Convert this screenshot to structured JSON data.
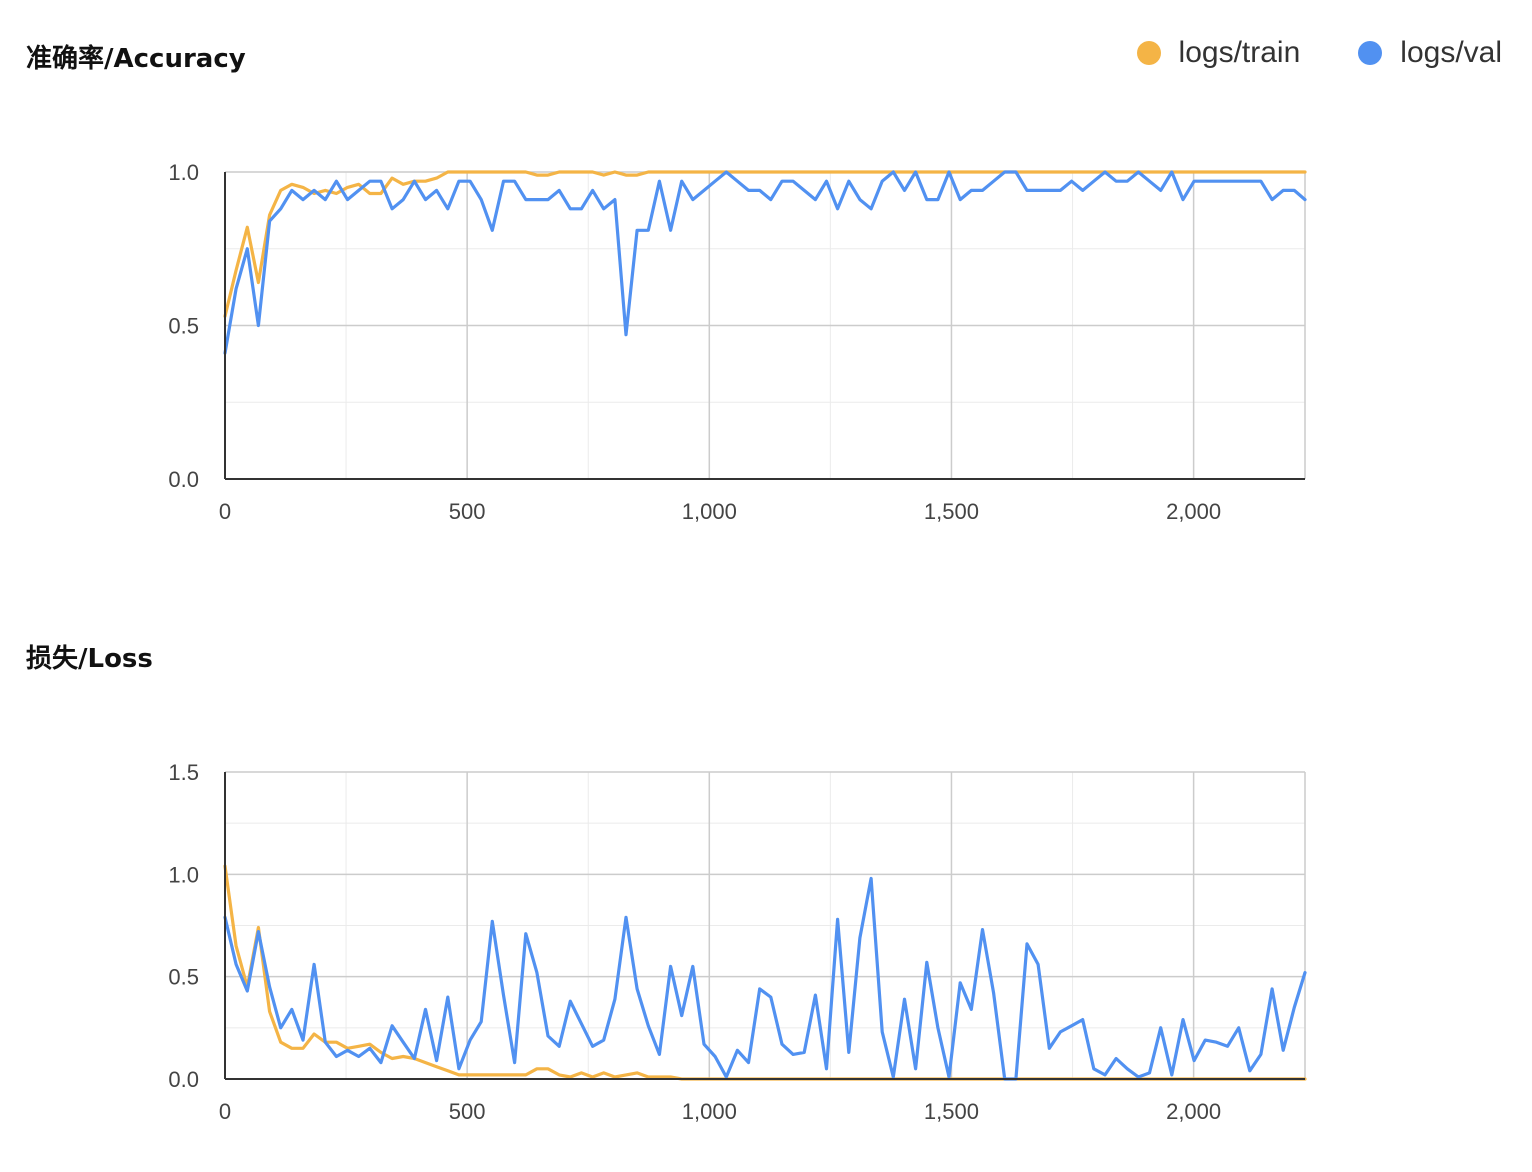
{
  "legend": [
    {
      "name": "logs/train",
      "color": "#f4b446"
    },
    {
      "name": "logs/val",
      "color": "#5191f1"
    }
  ],
  "chart_data": [
    {
      "type": "line",
      "title": "准确率/Accuracy",
      "xlim": [
        0,
        2230
      ],
      "ylim": [
        0,
        1.0
      ],
      "xticks": [
        0,
        500,
        1000,
        1500,
        2000
      ],
      "xtick_labels": [
        "0",
        "500",
        "1,000",
        "1,500",
        "2,000"
      ],
      "yticks": [
        0.0,
        0.5,
        1.0
      ],
      "ytick_labels": [
        "0.0",
        "0.5",
        "1.0"
      ],
      "grid": true,
      "legend_position": "top-right",
      "series": [
        {
          "name": "logs/train",
          "color": "#f4b446",
          "x": [
            0,
            23,
            46,
            69,
            92,
            115,
            138,
            161,
            184,
            207,
            230,
            253,
            276,
            299,
            322,
            345,
            368,
            391,
            414,
            437,
            460,
            483,
            506,
            529,
            552,
            575,
            598,
            621,
            644,
            667,
            690,
            713,
            736,
            759,
            782,
            805,
            828,
            851,
            874,
            897,
            920,
            943,
            966,
            989,
            1012,
            1035,
            1100,
            1200,
            1300,
            1400,
            1500,
            1600,
            1700,
            1800,
            1900,
            2000,
            2100,
            2230
          ],
          "y": [
            0.53,
            0.68,
            0.82,
            0.64,
            0.86,
            0.94,
            0.96,
            0.95,
            0.93,
            0.94,
            0.93,
            0.95,
            0.96,
            0.93,
            0.93,
            0.98,
            0.96,
            0.97,
            0.97,
            0.98,
            1.0,
            1.0,
            1.0,
            1.0,
            1.0,
            1.0,
            1.0,
            1.0,
            0.99,
            0.99,
            1.0,
            1.0,
            1.0,
            1.0,
            0.99,
            1.0,
            0.99,
            0.99,
            1.0,
            1.0,
            1.0,
            1.0,
            1.0,
            1.0,
            1.0,
            1.0,
            1.0,
            1.0,
            1.0,
            1.0,
            1.0,
            1.0,
            1.0,
            1.0,
            1.0,
            1.0,
            1.0,
            1.0
          ]
        },
        {
          "name": "logs/val",
          "color": "#5191f1",
          "x": [
            0,
            23,
            46,
            69,
            92,
            115,
            138,
            161,
            184,
            207,
            230,
            253,
            276,
            299,
            322,
            345,
            368,
            391,
            414,
            437,
            460,
            483,
            506,
            529,
            552,
            575,
            598,
            621,
            644,
            667,
            690,
            713,
            736,
            759,
            782,
            805,
            828,
            851,
            874,
            897,
            920,
            943,
            966,
            989,
            1012,
            1035,
            1058,
            1081,
            1104,
            1127,
            1150,
            1173,
            1196,
            1219,
            1242,
            1265,
            1288,
            1311,
            1334,
            1357,
            1380,
            1403,
            1426,
            1449,
            1472,
            1495,
            1518,
            1541,
            1564,
            1587,
            1610,
            1633,
            1656,
            1679,
            1702,
            1725,
            1748,
            1771,
            1794,
            1817,
            1840,
            1863,
            1886,
            1909,
            1932,
            1955,
            1978,
            2001,
            2024,
            2047,
            2070,
            2093,
            2116,
            2139,
            2162,
            2185,
            2208,
            2230
          ],
          "y": [
            0.41,
            0.62,
            0.75,
            0.5,
            0.84,
            0.88,
            0.94,
            0.91,
            0.94,
            0.91,
            0.97,
            0.91,
            0.94,
            0.97,
            0.97,
            0.88,
            0.91,
            0.97,
            0.91,
            0.94,
            0.88,
            0.97,
            0.97,
            0.91,
            0.81,
            0.97,
            0.97,
            0.91,
            0.91,
            0.91,
            0.94,
            0.88,
            0.88,
            0.94,
            0.88,
            0.91,
            0.47,
            0.81,
            0.81,
            0.97,
            0.81,
            0.97,
            0.91,
            0.94,
            0.97,
            1.0,
            0.97,
            0.94,
            0.94,
            0.91,
            0.97,
            0.97,
            0.94,
            0.91,
            0.97,
            0.88,
            0.97,
            0.91,
            0.88,
            0.97,
            1.0,
            0.94,
            1.0,
            0.91,
            0.91,
            1.0,
            0.91,
            0.94,
            0.94,
            0.97,
            1.0,
            1.0,
            0.94,
            0.94,
            0.94,
            0.94,
            0.97,
            0.94,
            0.97,
            1.0,
            0.97,
            0.97,
            1.0,
            0.97,
            0.94,
            1.0,
            0.91,
            0.97,
            0.97,
            0.97,
            0.97,
            0.97,
            0.97,
            0.97,
            0.91,
            0.94,
            0.94,
            0.91
          ]
        }
      ]
    },
    {
      "type": "line",
      "title": "损失/Loss",
      "xlim": [
        0,
        2230
      ],
      "ylim": [
        0,
        1.5
      ],
      "xticks": [
        0,
        500,
        1000,
        1500,
        2000
      ],
      "xtick_labels": [
        "0",
        "500",
        "1,000",
        "1,500",
        "2,000"
      ],
      "yticks": [
        0.0,
        0.5,
        1.0,
        1.5
      ],
      "ytick_labels": [
        "0.0",
        "0.5",
        "1.0",
        "1.5"
      ],
      "grid": true,
      "series": [
        {
          "name": "logs/train",
          "color": "#f4b446",
          "x": [
            0,
            23,
            46,
            69,
            92,
            115,
            138,
            161,
            184,
            207,
            230,
            253,
            276,
            299,
            322,
            345,
            368,
            391,
            414,
            437,
            460,
            483,
            506,
            529,
            552,
            575,
            598,
            621,
            644,
            667,
            690,
            713,
            736,
            759,
            782,
            805,
            828,
            851,
            874,
            897,
            920,
            943,
            966,
            989,
            1012,
            1100,
            1200,
            1300,
            1400,
            1500,
            1600,
            1700,
            1800,
            1900,
            2000,
            2100,
            2230
          ],
          "y": [
            1.04,
            0.65,
            0.45,
            0.74,
            0.33,
            0.18,
            0.15,
            0.15,
            0.22,
            0.18,
            0.18,
            0.15,
            0.16,
            0.17,
            0.13,
            0.1,
            0.11,
            0.1,
            0.08,
            0.06,
            0.04,
            0.02,
            0.02,
            0.02,
            0.02,
            0.02,
            0.02,
            0.02,
            0.05,
            0.05,
            0.02,
            0.01,
            0.03,
            0.01,
            0.03,
            0.01,
            0.02,
            0.03,
            0.01,
            0.01,
            0.01,
            0.0,
            0.0,
            0.0,
            0.0,
            0.0,
            0.0,
            0.0,
            0.0,
            0.0,
            0.0,
            0.0,
            0.0,
            0.0,
            0.0,
            0.0,
            0.0
          ]
        },
        {
          "name": "logs/val",
          "color": "#5191f1",
          "x": [
            0,
            23,
            46,
            69,
            92,
            115,
            138,
            161,
            184,
            207,
            230,
            253,
            276,
            299,
            322,
            345,
            368,
            391,
            414,
            437,
            460,
            483,
            506,
            529,
            552,
            575,
            598,
            621,
            644,
            667,
            690,
            713,
            736,
            759,
            782,
            805,
            828,
            851,
            874,
            897,
            920,
            943,
            966,
            989,
            1012,
            1035,
            1058,
            1081,
            1104,
            1127,
            1150,
            1173,
            1196,
            1219,
            1242,
            1265,
            1288,
            1311,
            1334,
            1357,
            1380,
            1403,
            1426,
            1449,
            1472,
            1495,
            1518,
            1541,
            1564,
            1587,
            1610,
            1633,
            1656,
            1679,
            1702,
            1725,
            1748,
            1771,
            1794,
            1817,
            1840,
            1863,
            1886,
            1909,
            1932,
            1955,
            1978,
            2001,
            2024,
            2047,
            2070,
            2093,
            2116,
            2139,
            2162,
            2185,
            2208,
            2230
          ],
          "y": [
            0.79,
            0.56,
            0.43,
            0.72,
            0.45,
            0.25,
            0.34,
            0.19,
            0.56,
            0.18,
            0.11,
            0.14,
            0.11,
            0.15,
            0.08,
            0.26,
            0.18,
            0.1,
            0.34,
            0.09,
            0.4,
            0.05,
            0.19,
            0.28,
            0.77,
            0.41,
            0.08,
            0.71,
            0.52,
            0.21,
            0.16,
            0.38,
            0.27,
            0.16,
            0.19,
            0.39,
            0.79,
            0.44,
            0.26,
            0.12,
            0.55,
            0.31,
            0.55,
            0.17,
            0.11,
            0.01,
            0.14,
            0.08,
            0.44,
            0.4,
            0.17,
            0.12,
            0.13,
            0.41,
            0.05,
            0.78,
            0.13,
            0.69,
            0.98,
            0.23,
            0.01,
            0.39,
            0.05,
            0.57,
            0.25,
            0.01,
            0.47,
            0.34,
            0.73,
            0.42,
            0.0,
            0.0,
            0.66,
            0.56,
            0.15,
            0.23,
            0.26,
            0.29,
            0.05,
            0.02,
            0.1,
            0.05,
            0.01,
            0.03,
            0.25,
            0.02,
            0.29,
            0.09,
            0.19,
            0.18,
            0.16,
            0.25,
            0.04,
            0.12,
            0.44,
            0.14,
            0.35,
            0.52
          ]
        }
      ]
    }
  ]
}
